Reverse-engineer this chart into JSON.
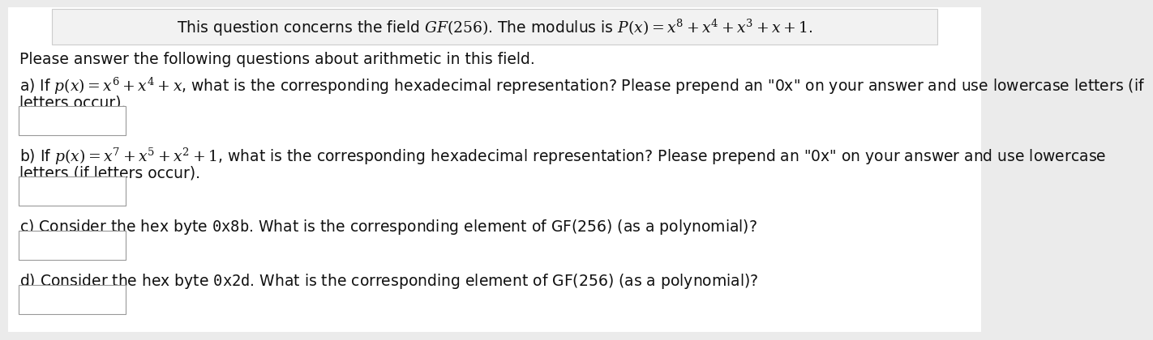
{
  "bg_color": "#ebebeb",
  "content_bg": "#ffffff",
  "header_box_bg": "#f2f2f2",
  "header_box_edge": "#cccccc",
  "header_text": "This question concerns the field $GF(256)$. The modulus is $P(x) = x^8 + x^4 + x^3 + x + 1$.",
  "intro_text": "Please answer the following questions about arithmetic in this field.",
  "q_a_line1": "a) If $p(x) = x^6 + x^4 + x$, what is the corresponding hexadecimal representation? Please prepend an \"0x\" on your answer and use lowercase letters (if",
  "q_a_line2": "letters occur).",
  "q_b_line1": "b) If $p(x) = x^7 + x^5 + x^2 + 1$, what is the corresponding hexadecimal representation? Please prepend an \"0x\" on your answer and use lowercase",
  "q_b_line2": "letters (if letters occur).",
  "q_c_line1": "c) Consider the hex byte $\\mathtt{0x8b}$. What is the corresponding element of GF(256) (as a polynomial)?",
  "q_d_line1": "d) Consider the hex byte $\\mathtt{0x2d}$. What is the corresponding element of GF(256) (as a polynomial)?",
  "font_size": 13.5,
  "input_box_color": "#ffffff",
  "input_box_edge_color": "#999999"
}
